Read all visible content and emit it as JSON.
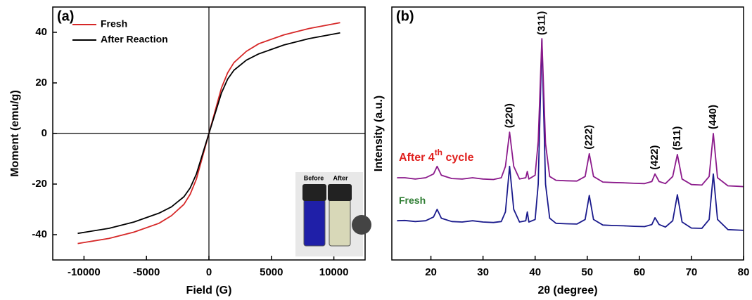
{
  "chart_data": [
    {
      "type": "line",
      "panel_label": "(a)",
      "x_label": "Field (G)",
      "y_label": "Moment (emu/g)",
      "xlim": [
        -12500,
        12500
      ],
      "ylim": [
        -50,
        50
      ],
      "xticks": [
        -10000,
        -5000,
        0,
        5000,
        10000
      ],
      "yticks": [
        -40,
        -20,
        0,
        20,
        40
      ],
      "legend": "upper left",
      "x": [
        -10500,
        -8000,
        -6000,
        -4000,
        -3000,
        -2000,
        -1500,
        -1000,
        -500,
        0,
        500,
        1000,
        1500,
        2000,
        3000,
        4000,
        6000,
        8000,
        10500
      ],
      "series": [
        {
          "name": "Fresh",
          "color": "#d62828",
          "values": [
            -43.5,
            -41.5,
            -39,
            -35.5,
            -32.5,
            -28,
            -24,
            -18,
            -9,
            0,
            9,
            18,
            24,
            28,
            32.5,
            35.5,
            39,
            41.5,
            43.8
          ]
        },
        {
          "name": "After Reaction",
          "color": "#000000",
          "values": [
            -39.5,
            -37.5,
            -35,
            -31.5,
            -29,
            -25,
            -21.5,
            -16,
            -8,
            0,
            8,
            16,
            21.5,
            25,
            29,
            31.5,
            35,
            37.5,
            39.8
          ]
        }
      ],
      "inset": {
        "labels": [
          "Before",
          "After"
        ]
      }
    },
    {
      "type": "line",
      "panel_label": "(b)",
      "x_label": "2θ (degree)",
      "y_label": "Intensity (a.u.)",
      "xlim": [
        12.5,
        80
      ],
      "ylim": [
        0,
        100
      ],
      "xticks": [
        20,
        30,
        40,
        50,
        60,
        70,
        80
      ],
      "x": [
        13.5,
        15,
        17,
        19,
        20.5,
        21.2,
        22,
        24,
        26,
        28,
        30,
        32,
        33.5,
        34.3,
        35.1,
        35.9,
        37,
        38.2,
        38.5,
        38.8,
        40,
        40.6,
        41.3,
        42,
        42.8,
        44,
        46,
        48,
        49.6,
        50.4,
        51.2,
        53,
        55,
        57,
        59,
        61,
        62.4,
        63,
        63.8,
        65,
        66.4,
        67.3,
        68.2,
        70,
        72,
        73.4,
        74.2,
        75,
        77,
        79,
        80
      ],
      "series": [
        {
          "name": "Fresh",
          "color": "#1a1a8c",
          "label_color": "#2e7d32",
          "values": [
            15.5,
            15.6,
            15.2,
            15.5,
            17,
            20,
            16.5,
            15.2,
            15,
            15.5,
            15,
            14.8,
            15.2,
            19,
            37,
            20,
            15,
            15.5,
            19,
            15,
            16,
            30,
            87,
            30,
            16.5,
            14.5,
            14.3,
            14.2,
            16,
            25.5,
            16,
            13.8,
            13.6,
            13.5,
            13.3,
            13.2,
            14,
            16.7,
            14,
            13,
            15.5,
            25.8,
            15,
            12.6,
            12.5,
            16,
            34,
            16,
            12,
            11.8,
            11.7
          ]
        },
        {
          "name_parts": [
            "After 4",
            "th",
            " cycle"
          ],
          "color": "#8b1a8b",
          "label_color": "#e0201e",
          "values": [
            32.5,
            32.5,
            32,
            32.5,
            34,
            37,
            33.5,
            32.2,
            32,
            32.5,
            32,
            31.8,
            32.5,
            37,
            50.5,
            37,
            32,
            32.5,
            35,
            32,
            33.5,
            47,
            87.5,
            46,
            33,
            31.5,
            31.3,
            31.2,
            33,
            42,
            33,
            30.8,
            30.6,
            30.5,
            30.3,
            30.2,
            31,
            34,
            31,
            30.2,
            33,
            41.7,
            32,
            29.8,
            29.6,
            33,
            50,
            32.5,
            29.3,
            29.1,
            29
          ]
        }
      ],
      "annotations": [
        {
          "text": "(220)",
          "x": 35.1
        },
        {
          "text": "(311)",
          "x": 41.3
        },
        {
          "text": "(222)",
          "x": 50.4
        },
        {
          "text": "(422)",
          "x": 63
        },
        {
          "text": "(511)",
          "x": 67.3
        },
        {
          "text": "(440)",
          "x": 74.2
        }
      ]
    }
  ]
}
